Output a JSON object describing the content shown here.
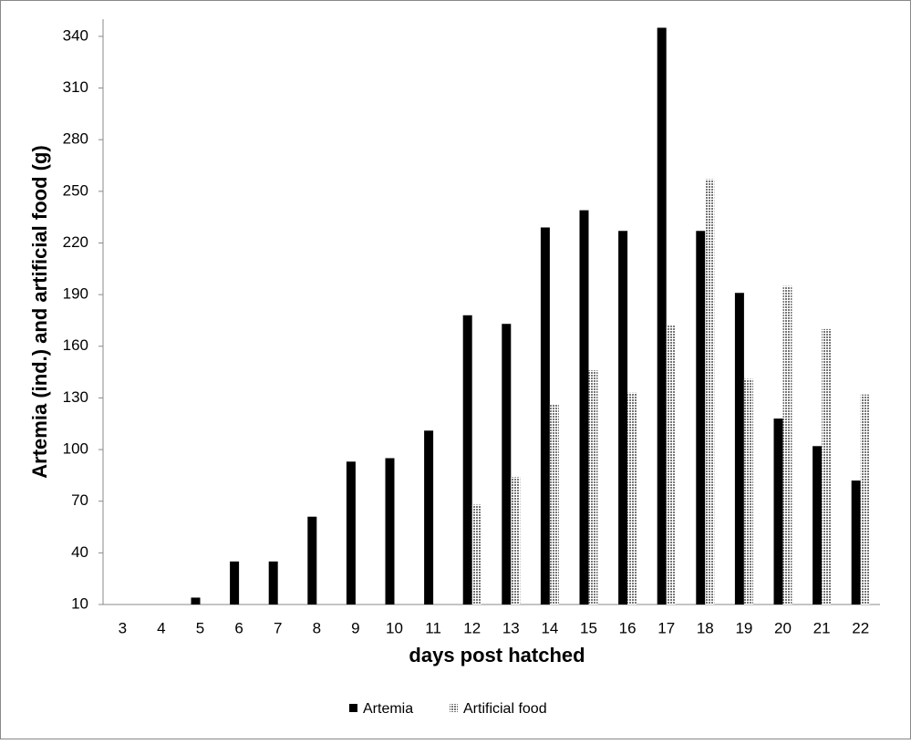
{
  "chart_data": {
    "type": "bar",
    "x_label": "days post hatched",
    "y_label": "Artemia (ind.) and artificial food (g)",
    "categories": [
      "3",
      "4",
      "5",
      "6",
      "7",
      "8",
      "9",
      "10",
      "11",
      "12",
      "13",
      "14",
      "15",
      "16",
      "17",
      "18",
      "19",
      "20",
      "21",
      "22"
    ],
    "series": [
      {
        "name": "Artemia",
        "color": "#000000",
        "values": [
          null,
          null,
          14,
          35,
          35,
          61,
          93,
          95,
          111,
          178,
          173,
          229,
          239,
          227,
          345,
          227,
          191,
          118,
          102,
          82
        ]
      },
      {
        "name": "Artificial food",
        "color": "#8c8c8c",
        "values": [
          null,
          null,
          null,
          null,
          null,
          null,
          null,
          null,
          null,
          68,
          84,
          126,
          146,
          133,
          172,
          257,
          141,
          195,
          170,
          132
        ]
      }
    ],
    "ylim": [
      10,
      350
    ],
    "yticks": [
      10,
      40,
      70,
      100,
      130,
      160,
      190,
      220,
      250,
      280,
      310,
      340
    ]
  }
}
